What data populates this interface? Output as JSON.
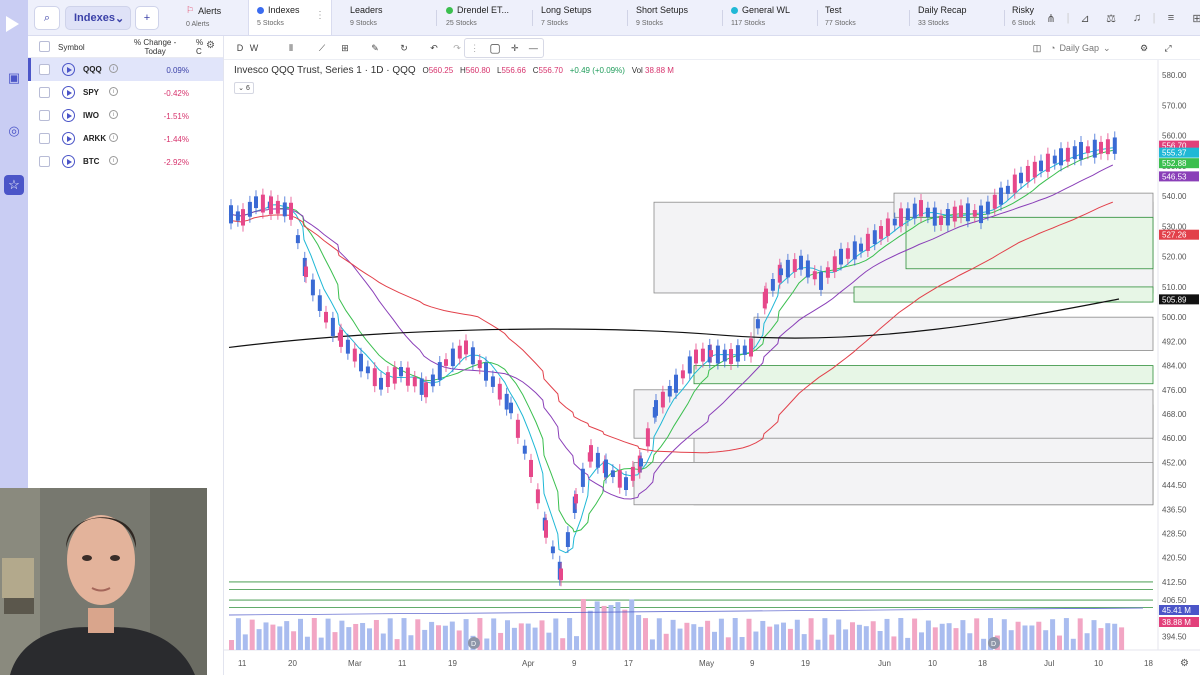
{
  "topbar": {
    "list_select": "Indexes",
    "tabs": [
      {
        "label": "Alerts",
        "sub": "0 Alerts",
        "icon": "bell-icon",
        "color": "#e24a6a",
        "active": false
      },
      {
        "label": "Indexes",
        "sub": "5 Stocks",
        "icon": "dot",
        "color": "#3b6cf0",
        "active": true
      },
      {
        "label": "Leaders",
        "sub": "9 Stocks",
        "icon": "",
        "color": "",
        "active": false
      },
      {
        "label": "Drendel ET...",
        "sub": "25 Stocks",
        "icon": "dot",
        "color": "#3bbf4f",
        "active": false
      },
      {
        "label": "Long Setups",
        "sub": "7 Stocks",
        "icon": "",
        "color": "",
        "active": false
      },
      {
        "label": "Short Setups",
        "sub": "9 Stocks",
        "icon": "",
        "color": "",
        "active": false
      },
      {
        "label": "General WL",
        "sub": "117 Stocks",
        "icon": "dot",
        "color": "#20b8d6",
        "active": false
      },
      {
        "label": "Test",
        "sub": "77 Stocks",
        "icon": "",
        "color": "",
        "active": false
      },
      {
        "label": "Daily Recap",
        "sub": "33 Stocks",
        "icon": "",
        "color": "",
        "active": false
      },
      {
        "label": "Risky",
        "sub": "6 Stock",
        "icon": "",
        "color": "",
        "active": false
      }
    ]
  },
  "watchlist": {
    "col_symbol": "Symbol",
    "col_change_1": "% Change -",
    "col_change_2": "Today",
    "col_extra": "%",
    "col_extra_2": "C",
    "rows": [
      {
        "symbol": "QQQ",
        "change": "0.09%",
        "color": "#3b41a8"
      },
      {
        "symbol": "SPY",
        "change": "-0.42%",
        "color": "#d7336d"
      },
      {
        "symbol": "IWO",
        "change": "-1.51%",
        "color": "#d7336d"
      },
      {
        "symbol": "ARKK",
        "change": "-1.44%",
        "color": "#d7336d"
      },
      {
        "symbol": "BTC",
        "change": "-2.92%",
        "color": "#d7336d"
      }
    ]
  },
  "chart_toolbar": {
    "interval_d": "D",
    "interval_w": "W",
    "layout_name": "Daily Gap"
  },
  "chart": {
    "title": "Invesco QQQ Trust, Series 1 · 1D · QQQ",
    "o_label": "O",
    "o_value": "560.25",
    "h_label": "H",
    "h_value": "560.80",
    "l_label": "L",
    "l_value": "556.66",
    "c_label": "C",
    "c_value": "556.70",
    "change_value": "+0.49 (+0.09%)",
    "vol_label": "Vol",
    "vol_value": "38.88 M",
    "indicator_count": "6",
    "event_marker": "D",
    "price_axis": [
      "580.00",
      "570.00",
      "560.00",
      "550.00",
      "540.00",
      "530.00",
      "520.00",
      "510.00",
      "500.00",
      "492.00",
      "484.00",
      "476.00",
      "468.00",
      "460.00",
      "452.00",
      "444.50",
      "436.50",
      "428.50",
      "420.50",
      "412.50",
      "406.50",
      "394.50"
    ],
    "price_labels": [
      {
        "value": "556.70",
        "color": "#e2407a"
      },
      {
        "value": "555.37",
        "color": "#20b8d6"
      },
      {
        "value": "552.88",
        "color": "#3bbf4f"
      },
      {
        "value": "546.53",
        "color": "#8a3fb8"
      },
      {
        "value": "527.26",
        "color": "#e2404a"
      },
      {
        "value": "505.89",
        "color": "#111111"
      }
    ],
    "volume_labels": [
      {
        "value": "45.41 M",
        "color": "#4b55c8"
      },
      {
        "value": "38.88 M",
        "color": "#e2407a"
      }
    ],
    "time_axis": [
      "11",
      "20",
      "Mar",
      "11",
      "19",
      "Apr",
      "9",
      "17",
      "May",
      "9",
      "19",
      "Jun",
      "10",
      "18",
      "Jul",
      "10",
      "18"
    ]
  },
  "chart_data": {
    "type": "candlestick",
    "symbol": "QQQ",
    "interval": "1D",
    "ylim": [
      390,
      585
    ],
    "moving_averages": [
      {
        "color": "#20b8d6",
        "last": 555.37
      },
      {
        "color": "#3bbf4f",
        "last": 552.88
      },
      {
        "color": "#8a3fb8",
        "last": 546.53
      },
      {
        "color": "#e2404a",
        "last": 527.26
      },
      {
        "color": "#111111",
        "last": 505.89
      }
    ],
    "volume_last": 38.88,
    "volume_avg": 45.41
  }
}
